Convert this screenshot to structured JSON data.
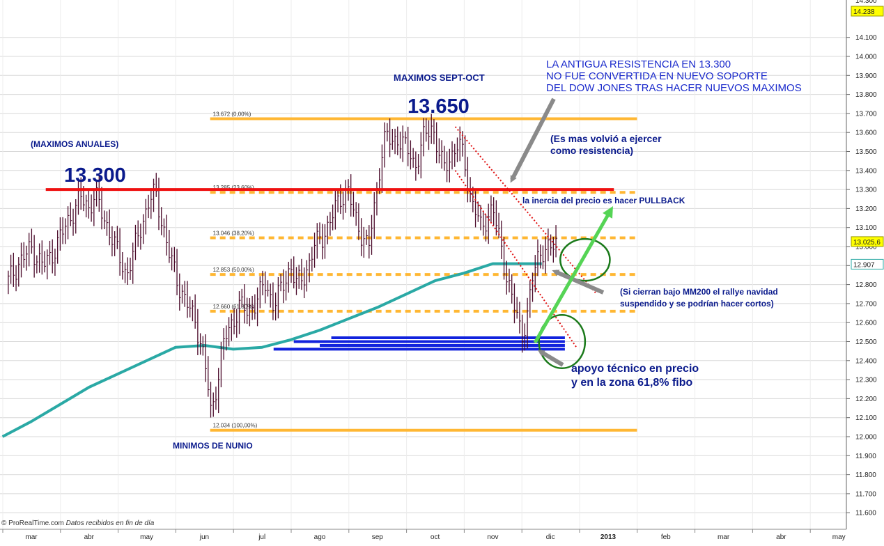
{
  "chart_data": {
    "type": "bar",
    "subtype": "ohlc-price-chart",
    "instrument_note": "",
    "ylim": [
      11550,
      14300
    ],
    "y_ticks": [
      11600,
      11700,
      11800,
      11900,
      12000,
      12100,
      12200,
      12300,
      12400,
      12500,
      12600,
      12700,
      12800,
      12900,
      13000,
      13100,
      13200,
      13300,
      13400,
      13500,
      13600,
      13700,
      13800,
      13900,
      14000,
      14100
    ],
    "y_tick_labels": [
      "11.600",
      "11.700",
      "11.800",
      "11.900",
      "12.000",
      "12.100",
      "12.200",
      "12.300",
      "12.400",
      "12.500",
      "12.600",
      "12.700",
      "12.800",
      "12.900",
      "13.000",
      "13.100",
      "13.200",
      "13.300",
      "13.400",
      "13.500",
      "13.600",
      "13.700",
      "13.800",
      "13.900",
      "14.000",
      "14.100"
    ],
    "y_top_partial_label": "14.300",
    "x_month_labels": [
      {
        "label": "mar",
        "month_index": 0
      },
      {
        "label": "abr",
        "month_index": 1
      },
      {
        "label": "may",
        "month_index": 2
      },
      {
        "label": "jun",
        "month_index": 3
      },
      {
        "label": "jul",
        "month_index": 4
      },
      {
        "label": "ago",
        "month_index": 5
      },
      {
        "label": "sep",
        "month_index": 6
      },
      {
        "label": "oct",
        "month_index": 7
      },
      {
        "label": "nov",
        "month_index": 8
      },
      {
        "label": "dic",
        "month_index": 9
      },
      {
        "label": "2013",
        "month_index": 10
      },
      {
        "label": "feb",
        "month_index": 11
      },
      {
        "label": "mar",
        "month_index": 12
      },
      {
        "label": "abr",
        "month_index": 13
      },
      {
        "label": "may",
        "month_index": 14
      }
    ],
    "price_close_path": [
      [
        -0.4,
        12820
      ],
      [
        -0.2,
        12920
      ],
      [
        0.0,
        12990
      ],
      [
        0.2,
        12900
      ],
      [
        0.35,
        12950
      ],
      [
        0.5,
        13050
      ],
      [
        0.7,
        13170
      ],
      [
        0.85,
        13260
      ],
      [
        1.0,
        13200
      ],
      [
        1.1,
        13280
      ],
      [
        1.25,
        13150
      ],
      [
        1.4,
        13050
      ],
      [
        1.55,
        12920
      ],
      [
        1.65,
        12850
      ],
      [
        1.8,
        13000
      ],
      [
        1.95,
        13150
      ],
      [
        2.05,
        13250
      ],
      [
        2.15,
        13280
      ],
      [
        2.25,
        13150
      ],
      [
        2.4,
        12950
      ],
      [
        2.55,
        12800
      ],
      [
        2.7,
        12700
      ],
      [
        2.85,
        12600
      ],
      [
        2.95,
        12480
      ],
      [
        3.05,
        12300
      ],
      [
        3.12,
        12100
      ],
      [
        3.2,
        12250
      ],
      [
        3.3,
        12450
      ],
      [
        3.4,
        12550
      ],
      [
        3.5,
        12600
      ],
      [
        3.6,
        12700
      ],
      [
        3.75,
        12650
      ],
      [
        3.9,
        12720
      ],
      [
        4.05,
        12800
      ],
      [
        4.2,
        12700
      ],
      [
        4.35,
        12780
      ],
      [
        4.5,
        12900
      ],
      [
        4.6,
        12800
      ],
      [
        4.75,
        12850
      ],
      [
        4.9,
        13000
      ],
      [
        5.05,
        13050
      ],
      [
        5.2,
        13150
      ],
      [
        5.35,
        13250
      ],
      [
        5.5,
        13300
      ],
      [
        5.6,
        13150
      ],
      [
        5.75,
        13050
      ],
      [
        5.85,
        13000
      ],
      [
        5.95,
        13200
      ],
      [
        6.05,
        13450
      ],
      [
        6.15,
        13600
      ],
      [
        6.25,
        13530
      ],
      [
        6.35,
        13580
      ],
      [
        6.5,
        13520
      ],
      [
        6.65,
        13420
      ],
      [
        6.8,
        13570
      ],
      [
        6.95,
        13630
      ],
      [
        7.05,
        13520
      ],
      [
        7.15,
        13400
      ],
      [
        7.25,
        13460
      ],
      [
        7.4,
        13550
      ],
      [
        7.5,
        13460
      ],
      [
        7.6,
        13280
      ],
      [
        7.7,
        13200
      ],
      [
        7.8,
        13080
      ],
      [
        7.9,
        13150
      ],
      [
        8.0,
        13220
      ],
      [
        8.1,
        13050
      ],
      [
        8.2,
        12900
      ],
      [
        8.3,
        12780
      ],
      [
        8.4,
        12650
      ],
      [
        8.5,
        12520
      ],
      [
        8.6,
        12650
      ],
      [
        8.7,
        12850
      ],
      [
        8.8,
        12950
      ],
      [
        8.9,
        13000
      ],
      [
        9.0,
        12980
      ],
      [
        9.1,
        13020
      ]
    ],
    "price_high_low_amplitude": 70,
    "ma200_path": [
      [
        -0.5,
        12000
      ],
      [
        0.0,
        12080
      ],
      [
        0.5,
        12170
      ],
      [
        1.0,
        12260
      ],
      [
        1.5,
        12330
      ],
      [
        2.0,
        12400
      ],
      [
        2.5,
        12470
      ],
      [
        3.0,
        12480
      ],
      [
        3.5,
        12460
      ],
      [
        4.0,
        12470
      ],
      [
        4.5,
        12510
      ],
      [
        5.0,
        12560
      ],
      [
        5.5,
        12620
      ],
      [
        6.0,
        12680
      ],
      [
        6.5,
        12750
      ],
      [
        7.0,
        12820
      ],
      [
        7.5,
        12860
      ],
      [
        8.0,
        12910
      ],
      [
        8.5,
        12910
      ],
      [
        8.85,
        12910
      ]
    ],
    "fibonacci_levels": [
      {
        "value": 13672,
        "label": "13.672 (0,00%)",
        "style": "solid"
      },
      {
        "value": 13285,
        "label": "13.285 (23,60%)",
        "style": "dashed"
      },
      {
        "value": 13046,
        "label": "13.046 (38,20%)",
        "style": "dashed"
      },
      {
        "value": 12853,
        "label": "12.853 (50,00%)",
        "style": "dashed"
      },
      {
        "value": 12660,
        "label": "12.660 (61,80%)",
        "style": "dashed"
      },
      {
        "value": 12034,
        "label": "12.034 (100,00%)",
        "style": "solid"
      }
    ],
    "fib_x_range_months": [
      3.1,
      10.5
    ],
    "resistance_line": {
      "value": 13300,
      "x_range_months": [
        0.25,
        10.1
      ]
    },
    "support_zone_lines": [
      {
        "value": 12520,
        "x_range_months": [
          5.2,
          9.25
        ]
      },
      {
        "value": 12500,
        "x_range_months": [
          4.55,
          9.25
        ]
      },
      {
        "value": 12480,
        "x_range_months": [
          5.0,
          9.25
        ]
      },
      {
        "value": 12460,
        "x_range_months": [
          4.2,
          9.25
        ]
      }
    ],
    "downtrend_channel": [
      {
        "from": [
          7.35,
          13630
        ],
        "to": [
          9.8,
          12750
        ]
      },
      {
        "from": [
          7.35,
          13400
        ],
        "to": [
          9.45,
          12470
        ]
      }
    ],
    "circles": [
      {
        "center": [
          9.6,
          12930
        ],
        "rx_months": 0.43,
        "ry_value": 110
      },
      {
        "center": [
          9.2,
          12500
        ],
        "rx_months": 0.4,
        "ry_value": 140
      }
    ],
    "value_badges": [
      {
        "label": "14.238",
        "value": 14238,
        "fill": "#ffff00",
        "border": "#999900"
      },
      {
        "label": "13.025,6",
        "value": 13026,
        "fill": "#ffff00",
        "border": "#999900"
      },
      {
        "label": "12.907",
        "value": 12907,
        "fill": "#ffffff",
        "border": "#2aa9a5"
      }
    ],
    "annotations": {
      "maximos_sept_oct": "MAXIMOS SEPT-OCT",
      "level_13650": "13.650",
      "maximos_anuales": "(MAXIMOS ANUALES)",
      "level_13300": "13.300",
      "antigua_resistencia": [
        "LA ANTIGUA RESISTENCIA EN 13.300",
        "NO FUE CONVERTIDA EN NUEVO SOPORTE",
        "DEL DOW JONES TRAS HACER NUEVOS MAXIMOS"
      ],
      "es_mas": [
        "(Es mas volvió a ejercer",
        "como resistencia)"
      ],
      "inercia": "la inercia del precio es hacer PULLBACK",
      "mm200": [
        "(Si cierran bajo MM200 el rallye navidad",
        "suspendido y se podrían hacer cortos)"
      ],
      "apoyo": [
        "apoyo técnico en precio",
        "y en la zona 61,8% fibo"
      ],
      "minimos": "MINIMOS DE NUNIO",
      "source": "ProRealTime.com",
      "source_note": "Datos recibidos en fin de día"
    },
    "colors": {
      "price_bars": "#4a0a2a",
      "ma200": "#2aa9a5",
      "fib": "#ffb733",
      "resistance": "#ee1111",
      "support_zone": "#1122dd",
      "channel": "#e01010",
      "circle": "#1b7a1b",
      "grid": "#d8d8d8",
      "green_arrow": "#55d455",
      "gray_arrow": "#8a8a8a"
    },
    "grid": true,
    "title": "",
    "xlabel": "",
    "ylabel": ""
  }
}
